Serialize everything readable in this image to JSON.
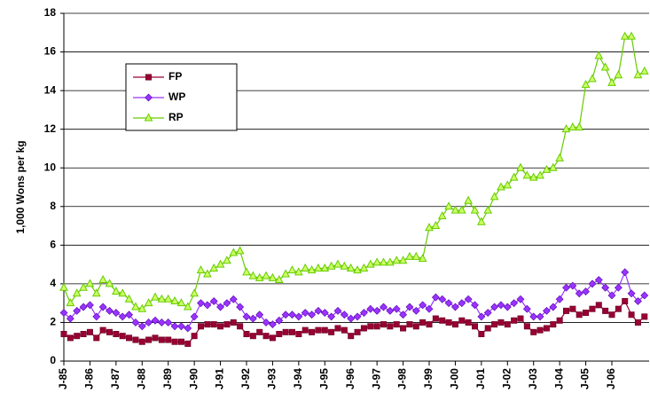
{
  "chart_data": {
    "type": "line",
    "y_label": "1,000 Wons per kg",
    "categories": [
      "J-85",
      null,
      null,
      null,
      "J-86",
      null,
      null,
      null,
      "J-87",
      null,
      null,
      null,
      "J-88",
      null,
      null,
      null,
      "J-89",
      null,
      null,
      null,
      "J-90",
      null,
      null,
      null,
      "J-91",
      null,
      null,
      null,
      "J-92",
      null,
      null,
      null,
      "J-93",
      null,
      null,
      null,
      "J-94",
      null,
      null,
      null,
      "J-95",
      null,
      null,
      null,
      "J-96",
      null,
      null,
      null,
      "J-97",
      null,
      null,
      null,
      "J-98",
      null,
      null,
      null,
      "J-99",
      null,
      null,
      null,
      "J-00",
      null,
      null,
      null,
      "J-01",
      null,
      null,
      null,
      "J-02",
      null,
      null,
      null,
      "J-03",
      null,
      null,
      null,
      "J-04",
      null,
      null,
      null,
      "J-05",
      null,
      null,
      null,
      "J-06",
      null,
      null,
      null,
      null,
      null
    ],
    "ylim": [
      0,
      18
    ],
    "yticks": [
      0,
      2,
      4,
      6,
      8,
      10,
      12,
      14,
      16,
      18
    ],
    "grid": true,
    "series": [
      {
        "name": "FP",
        "color": "#990033",
        "marker": "square",
        "values": [
          1.4,
          1.2,
          1.3,
          1.4,
          1.5,
          1.2,
          1.6,
          1.5,
          1.4,
          1.3,
          1.2,
          1.1,
          1.0,
          1.1,
          1.2,
          1.1,
          1.1,
          1.0,
          1.0,
          0.9,
          1.3,
          1.8,
          1.9,
          1.9,
          1.8,
          1.9,
          2.0,
          1.8,
          1.4,
          1.3,
          1.5,
          1.3,
          1.2,
          1.4,
          1.5,
          1.5,
          1.4,
          1.6,
          1.5,
          1.6,
          1.6,
          1.5,
          1.7,
          1.6,
          1.3,
          1.5,
          1.7,
          1.8,
          1.8,
          1.9,
          1.8,
          1.9,
          1.7,
          1.9,
          1.8,
          2.0,
          1.9,
          2.2,
          2.1,
          2.0,
          1.9,
          2.1,
          2.0,
          1.8,
          1.4,
          1.7,
          1.9,
          2.0,
          1.9,
          2.1,
          2.2,
          1.8,
          1.5,
          1.6,
          1.7,
          1.9,
          2.1,
          2.6,
          2.7,
          2.4,
          2.5,
          2.7,
          2.9,
          2.6,
          2.4,
          2.7,
          3.1,
          2.4,
          2.0,
          2.3
        ]
      },
      {
        "name": "WP",
        "color": "#9933ff",
        "marker": "diamond",
        "values": [
          2.5,
          2.2,
          2.6,
          2.8,
          2.9,
          2.3,
          2.8,
          2.6,
          2.5,
          2.3,
          2.4,
          2.0,
          1.8,
          2.0,
          2.1,
          2.0,
          2.0,
          1.8,
          1.8,
          1.7,
          2.3,
          3.0,
          2.9,
          3.1,
          2.8,
          3.0,
          3.2,
          2.8,
          2.3,
          2.2,
          2.4,
          2.0,
          1.9,
          2.1,
          2.4,
          2.4,
          2.3,
          2.5,
          2.4,
          2.6,
          2.5,
          2.3,
          2.6,
          2.4,
          2.2,
          2.3,
          2.5,
          2.7,
          2.6,
          2.8,
          2.6,
          2.7,
          2.4,
          2.8,
          2.6,
          2.9,
          2.7,
          3.3,
          3.2,
          3.0,
          2.8,
          3.0,
          3.2,
          2.9,
          2.3,
          2.5,
          2.8,
          2.9,
          2.8,
          3.0,
          3.2,
          2.7,
          2.3,
          2.3,
          2.6,
          2.8,
          3.2,
          3.8,
          3.9,
          3.5,
          3.6,
          4.0,
          4.2,
          3.8,
          3.4,
          3.8,
          4.6,
          3.5,
          3.1,
          3.4
        ]
      },
      {
        "name": "RP",
        "color": "#66cc00",
        "marker": "triangle",
        "values": [
          3.8,
          3.0,
          3.5,
          3.8,
          4.0,
          3.5,
          4.2,
          4.0,
          3.6,
          3.5,
          3.2,
          2.8,
          2.7,
          3.0,
          3.3,
          3.2,
          3.2,
          3.1,
          3.0,
          2.8,
          3.5,
          4.7,
          4.5,
          4.8,
          5.0,
          5.2,
          5.6,
          5.7,
          4.6,
          4.4,
          4.3,
          4.4,
          4.3,
          4.2,
          4.5,
          4.7,
          4.6,
          4.8,
          4.7,
          4.8,
          4.8,
          4.9,
          5.0,
          4.9,
          4.8,
          4.7,
          4.8,
          5.0,
          5.1,
          5.1,
          5.1,
          5.2,
          5.2,
          5.4,
          5.4,
          5.3,
          6.9,
          7.0,
          7.5,
          8.0,
          7.8,
          7.8,
          8.3,
          7.8,
          7.2,
          7.8,
          8.5,
          9.0,
          9.1,
          9.5,
          10.0,
          9.6,
          9.5,
          9.6,
          9.9,
          10.0,
          10.5,
          12.0,
          12.1,
          12.1,
          14.3,
          14.6,
          15.8,
          15.2,
          14.4,
          14.8,
          16.8,
          16.8,
          14.8,
          15.0
        ]
      }
    ]
  }
}
